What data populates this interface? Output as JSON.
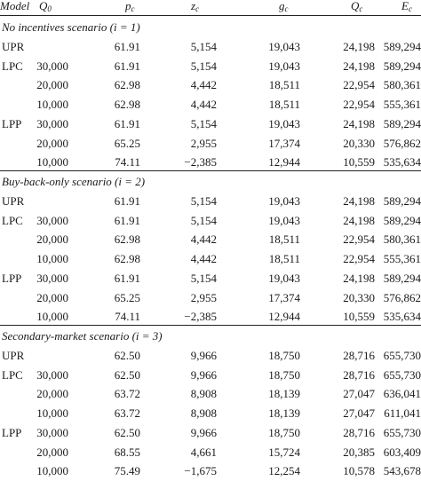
{
  "header": {
    "model": "Model",
    "q0": "Q",
    "q0_sub": "0",
    "pc": "p",
    "pc_sub": "c",
    "zc": "z",
    "zc_sub": "c",
    "gc": "g",
    "gc_sub": "c",
    "Qc": "Q",
    "Qc_sub": "c",
    "ec": "E",
    "ec_sub": "c"
  },
  "sections": [
    {
      "title": "No incentives scenario (i = 1)",
      "rows": [
        [
          "UPR",
          "",
          "61.91",
          "5,154",
          "19,043",
          "24,198",
          "589,294"
        ],
        [
          "LPC",
          "30,000",
          "61.91",
          "5,154",
          "19,043",
          "24,198",
          "589,294"
        ],
        [
          "",
          "20,000",
          "62.98",
          "4,442",
          "18,511",
          "22,954",
          "580,361"
        ],
        [
          "",
          "10,000",
          "62.98",
          "4,442",
          "18,511",
          "22,954",
          "555,361"
        ],
        [
          "LPP",
          "30,000",
          "61.91",
          "5,154",
          "19,043",
          "24,198",
          "589,294"
        ],
        [
          "",
          "20,000",
          "65.25",
          "2,955",
          "17,374",
          "20,330",
          "576,862"
        ],
        [
          "",
          "10,000",
          "74.11",
          "−2,385",
          "12,944",
          "10,559",
          "535,634"
        ]
      ]
    },
    {
      "title": "Buy-back-only scenario (i = 2)",
      "rows": [
        [
          "UPR",
          "",
          "61.91",
          "5,154",
          "19,043",
          "24,198",
          "589,294"
        ],
        [
          "LPC",
          "30,000",
          "61.91",
          "5,154",
          "19,043",
          "24,198",
          "589,294"
        ],
        [
          "",
          "20,000",
          "62.98",
          "4,442",
          "18,511",
          "22,954",
          "580,361"
        ],
        [
          "",
          "10,000",
          "62.98",
          "4,442",
          "18,511",
          "22,954",
          "555,361"
        ],
        [
          "LPP",
          "30,000",
          "61.91",
          "5,154",
          "19,043",
          "24,198",
          "589,294"
        ],
        [
          "",
          "20,000",
          "65.25",
          "2,955",
          "17,374",
          "20,330",
          "576,862"
        ],
        [
          "",
          "10,000",
          "74.11",
          "−2,385",
          "12,944",
          "10,559",
          "535,634"
        ]
      ]
    },
    {
      "title": "Secondary-market scenario (i = 3)",
      "rows": [
        [
          "UPR",
          "",
          "62.50",
          "9,966",
          "18,750",
          "28,716",
          "655,730"
        ],
        [
          "LPC",
          "30,000",
          "62.50",
          "9,966",
          "18,750",
          "28,716",
          "655,730"
        ],
        [
          "",
          "20,000",
          "63.72",
          "8,908",
          "18,139",
          "27,047",
          "636,041"
        ],
        [
          "",
          "10,000",
          "63.72",
          "8,908",
          "18,139",
          "27,047",
          "611,041"
        ],
        [
          "LPP",
          "30,000",
          "62.50",
          "9,966",
          "18,750",
          "28,716",
          "655,730"
        ],
        [
          "",
          "20,000",
          "68.55",
          "4,661",
          "15,724",
          "20,385",
          "603,409"
        ],
        [
          "",
          "10,000",
          "75.49",
          "−1,675",
          "12,254",
          "10,578",
          "543,678"
        ]
      ]
    }
  ]
}
